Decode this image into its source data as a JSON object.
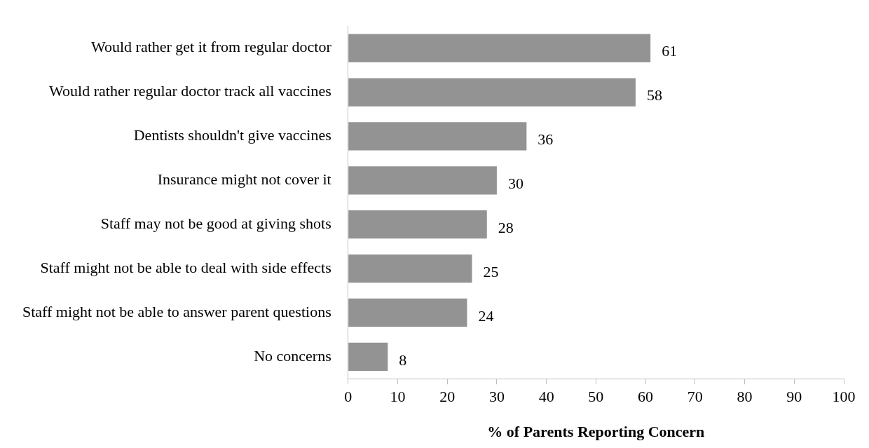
{
  "chart_data": {
    "type": "bar",
    "orientation": "horizontal",
    "xlabel": "% of Parents Reporting Concern",
    "categories": [
      "Would rather get it from regular doctor",
      "Would rather regular doctor track all vaccines",
      "Dentists shouldn't give vaccines",
      "Insurance might not cover it",
      "Staff may not be good at giving shots",
      "Staff might not be able to deal with side effects",
      "Staff might not be able to answer parent questions",
      "No concerns"
    ],
    "values": [
      61,
      58,
      36,
      30,
      28,
      25,
      24,
      8
    ],
    "color": "#939393",
    "xlim": [
      0,
      100
    ],
    "xticks": [
      0,
      10,
      20,
      30,
      40,
      50,
      60,
      70,
      80,
      90,
      100
    ],
    "grid": false,
    "legend": false,
    "data_labels": true
  }
}
